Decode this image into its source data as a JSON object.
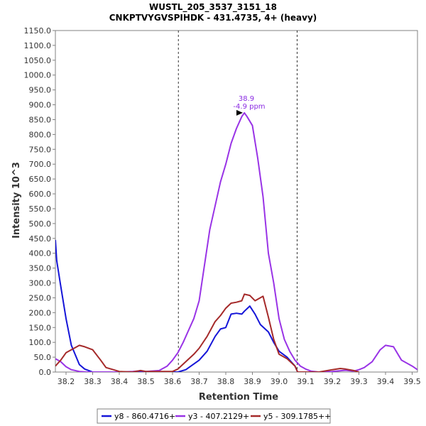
{
  "chart_data": {
    "type": "line",
    "title": "WUSTL_205_3537_3151_18",
    "subtitle": "CNKPTVYGVSPIHDK - 431.4735, 4+ (heavy)",
    "xlabel": "Retention Time",
    "ylabel": "Intensity 10^3",
    "xlim": [
      38.16,
      39.52
    ],
    "ylim": [
      0,
      1150
    ],
    "xticks": [
      "38.2",
      "38.3",
      "38.4",
      "38.5",
      "38.6",
      "38.7",
      "38.8",
      "38.9",
      "39.0",
      "39.1",
      "39.2",
      "39.3",
      "39.4",
      "39.5"
    ],
    "yticks": [
      "0.0",
      "50.0",
      "100.0",
      "150.0",
      "200.0",
      "250.0",
      "300.0",
      "350.0",
      "400.0",
      "450.0",
      "500.0",
      "550.0",
      "600.0",
      "650.0",
      "700.0",
      "750.0",
      "800.0",
      "850.0",
      "900.0",
      "950.0",
      "1000.0",
      "1050.0",
      "1100.0",
      "1150.0"
    ],
    "vlines": [
      38.622,
      39.068
    ],
    "peak_annotation": {
      "x": 38.872,
      "y": 873,
      "time": "38.9",
      "ppm": "-4.9 ppm"
    },
    "legend_position": "bottom",
    "series": [
      {
        "name": "y8 - 860.4716+",
        "color": "#1515d8",
        "x": [
          38.16,
          38.165,
          38.18,
          38.2,
          38.22,
          38.25,
          38.27,
          38.3,
          38.62,
          38.65,
          38.7,
          38.73,
          38.76,
          38.78,
          38.8,
          38.82,
          38.84,
          38.86,
          38.87,
          38.89,
          38.91,
          38.93,
          38.96,
          38.98,
          39.0,
          39.03,
          39.06,
          39.07
        ],
        "y": [
          445,
          375,
          290,
          180,
          90,
          25,
          10,
          0,
          0,
          8,
          40,
          70,
          120,
          145,
          150,
          195,
          198,
          195,
          205,
          222,
          195,
          160,
          135,
          100,
          70,
          50,
          20,
          0
        ]
      },
      {
        "name": "y3 - 407.2129+",
        "color": "#9933e6",
        "x": [
          38.16,
          38.18,
          38.2,
          38.22,
          38.25,
          38.28,
          38.3,
          38.35,
          38.4,
          38.45,
          38.48,
          38.5,
          38.55,
          38.58,
          38.6,
          38.62,
          38.64,
          38.66,
          38.68,
          38.7,
          38.72,
          38.74,
          38.76,
          38.78,
          38.8,
          38.82,
          38.84,
          38.86,
          38.87,
          38.88,
          38.9,
          38.92,
          38.94,
          38.96,
          38.98,
          39.0,
          39.02,
          39.04,
          39.06,
          39.08,
          39.1,
          39.12,
          39.15,
          39.2,
          39.25,
          39.28,
          39.3,
          39.32,
          39.35,
          39.38,
          39.4,
          39.43,
          39.46,
          39.5,
          39.52
        ],
        "y": [
          45,
          35,
          18,
          8,
          2,
          0,
          0,
          0,
          0,
          2,
          4,
          2,
          5,
          20,
          40,
          65,
          100,
          140,
          180,
          240,
          360,
          480,
          560,
          640,
          700,
          770,
          820,
          860,
          873,
          860,
          830,
          720,
          590,
          400,
          300,
          180,
          110,
          70,
          40,
          20,
          10,
          3,
          0,
          2,
          6,
          3,
          8,
          15,
          35,
          75,
          90,
          85,
          40,
          20,
          8
        ]
      },
      {
        "name": "y5 - 309.1785++",
        "color": "#a52a2a",
        "x": [
          38.16,
          38.18,
          38.2,
          38.22,
          38.25,
          38.27,
          38.3,
          38.33,
          38.35,
          38.37,
          38.4,
          38.45,
          38.48,
          38.5,
          38.6,
          38.62,
          38.65,
          38.68,
          38.7,
          38.73,
          38.76,
          38.78,
          38.8,
          38.82,
          38.84,
          38.86,
          38.87,
          38.89,
          38.91,
          38.93,
          38.94,
          38.96,
          38.98,
          39.0,
          39.03,
          39.06,
          39.07,
          39.15,
          39.2,
          39.23,
          39.25,
          39.28,
          39.3
        ],
        "y": [
          20,
          40,
          65,
          75,
          90,
          85,
          75,
          40,
          15,
          10,
          2,
          0,
          5,
          2,
          2,
          10,
          35,
          60,
          80,
          120,
          170,
          190,
          215,
          232,
          235,
          240,
          262,
          258,
          240,
          250,
          255,
          185,
          110,
          60,
          45,
          20,
          0,
          0,
          8,
          12,
          10,
          5,
          0
        ]
      }
    ]
  }
}
